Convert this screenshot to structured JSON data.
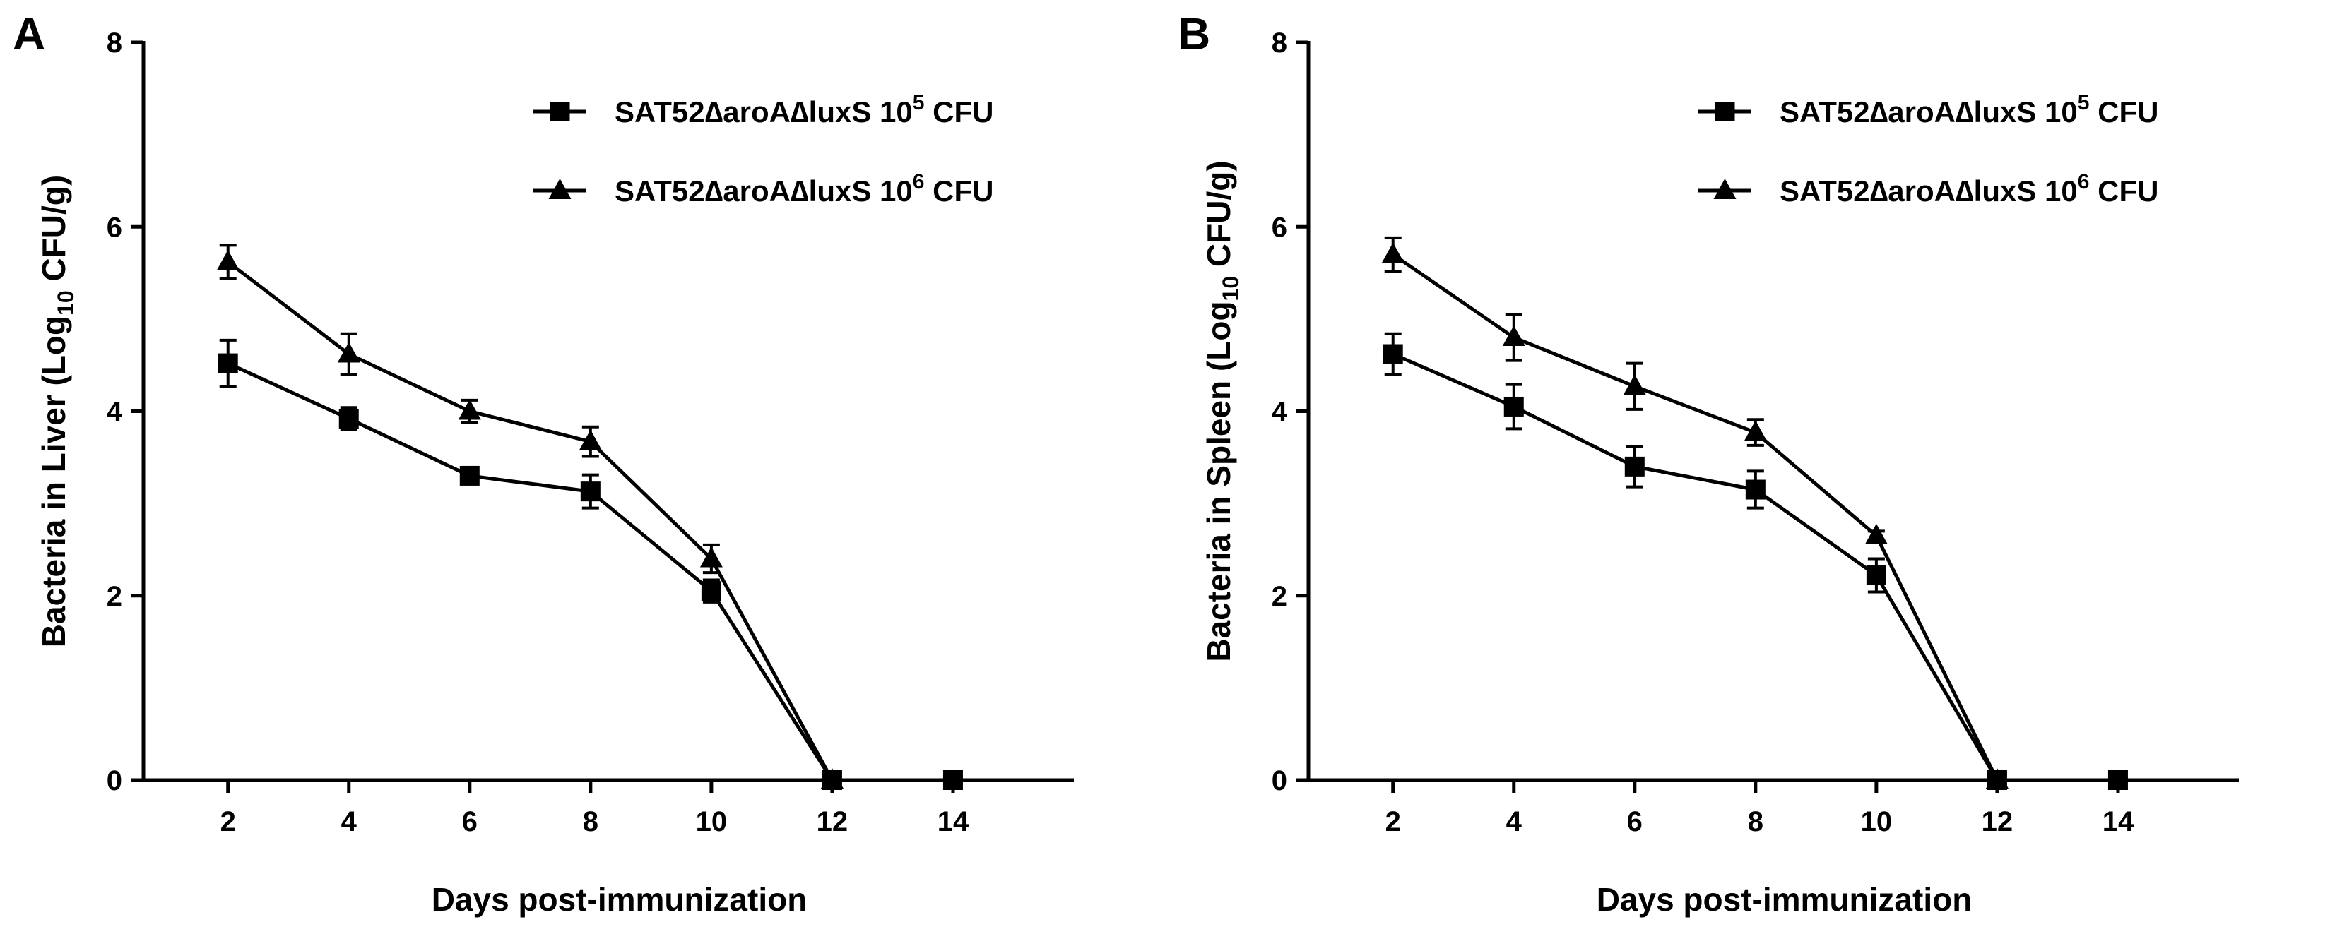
{
  "chart_data": [
    {
      "type": "line",
      "panel_label": "A",
      "xlabel": "Days post-immunization",
      "ylabel_prefix": "Bacteria in Liver (Log",
      "ylabel_sub": "10",
      "ylabel_suffix": " CFU/g)",
      "x_ticks": [
        "2",
        "4",
        "6",
        "8",
        "10",
        "12",
        "14"
      ],
      "y_ticks": [
        "0",
        "2",
        "4",
        "6",
        "8"
      ],
      "xlim": [
        0.6,
        16.0
      ],
      "ylim": [
        0,
        8
      ],
      "legend_position": "top-right",
      "series": [
        {
          "name": "SAT52∆aroA∆luxS 10",
          "sup": "5",
          "unit": " CFU",
          "marker": "square",
          "x": [
            2,
            4,
            6,
            8,
            10,
            12,
            14
          ],
          "y": [
            4.52,
            3.92,
            3.3,
            3.13,
            2.05,
            0,
            0
          ],
          "err": [
            0.25,
            0.12,
            0.05,
            0.18,
            0.12,
            0,
            0
          ]
        },
        {
          "name": "SAT52∆aroA∆luxS 10",
          "sup": "6",
          "unit": " CFU",
          "marker": "triangle",
          "x": [
            2,
            4,
            6,
            8,
            10,
            12
          ],
          "y": [
            5.62,
            4.62,
            4.0,
            3.67,
            2.4,
            0
          ],
          "err": [
            0.18,
            0.22,
            0.12,
            0.16,
            0.15,
            0
          ]
        }
      ]
    },
    {
      "type": "line",
      "panel_label": "B",
      "xlabel": "Days post-immunization",
      "ylabel_prefix": "Bacteria in Spleen (Log",
      "ylabel_sub": "10",
      "ylabel_suffix": " CFU/g)",
      "x_ticks": [
        "2",
        "4",
        "6",
        "8",
        "10",
        "12",
        "14"
      ],
      "y_ticks": [
        "0",
        "2",
        "4",
        "6",
        "8"
      ],
      "xlim": [
        0.6,
        16.0
      ],
      "ylim": [
        0,
        8
      ],
      "legend_position": "top-right",
      "series": [
        {
          "name": "SAT52∆aroA∆luxS 10",
          "sup": "5",
          "unit": " CFU",
          "marker": "square",
          "x": [
            2,
            4,
            6,
            8,
            10,
            12,
            14
          ],
          "y": [
            4.62,
            4.05,
            3.4,
            3.15,
            2.22,
            0,
            0
          ],
          "err": [
            0.22,
            0.24,
            0.22,
            0.2,
            0.18,
            0,
            0
          ]
        },
        {
          "name": "SAT52∆aroA∆luxS 10",
          "sup": "6",
          "unit": " CFU",
          "marker": "triangle",
          "x": [
            2,
            4,
            6,
            8,
            10,
            12
          ],
          "y": [
            5.7,
            4.8,
            4.27,
            3.77,
            2.65,
            0
          ],
          "err": [
            0.18,
            0.25,
            0.25,
            0.14,
            0.05,
            0
          ]
        }
      ]
    }
  ]
}
